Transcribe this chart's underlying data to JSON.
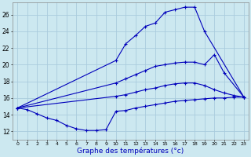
{
  "xlabel": "Graphe des températures (°c)",
  "x_ticks": [
    0,
    1,
    2,
    3,
    4,
    5,
    6,
    7,
    8,
    9,
    10,
    11,
    12,
    13,
    14,
    15,
    16,
    17,
    18,
    19,
    20,
    21,
    22,
    23
  ],
  "y_ticks": [
    12,
    14,
    16,
    18,
    20,
    22,
    24,
    26
  ],
  "xlim": [
    -0.5,
    23.5
  ],
  "ylim": [
    11.0,
    27.5
  ],
  "background_color": "#cce8f0",
  "grid_color": "#aaccdd",
  "line_color": "#0000bb",
  "series": [
    {
      "x": [
        0,
        1,
        2,
        3,
        4,
        5,
        6,
        7,
        8,
        9,
        10,
        11,
        12,
        13,
        14,
        15,
        16,
        17,
        18,
        19,
        20,
        21,
        22,
        23
      ],
      "y": [
        14.8,
        14.6,
        14.1,
        13.6,
        13.3,
        12.7,
        12.3,
        12.1,
        12.1,
        12.2,
        14.4,
        14.5,
        14.8,
        15.0,
        15.2,
        15.4,
        15.6,
        15.7,
        15.8,
        15.9,
        16.0,
        16.0,
        16.1,
        16.1
      ]
    },
    {
      "x": [
        0,
        10,
        11,
        12,
        13,
        14,
        15,
        16,
        17,
        18,
        19,
        23
      ],
      "y": [
        14.8,
        20.5,
        22.5,
        23.5,
        24.6,
        25.0,
        26.3,
        26.6,
        26.9,
        26.9,
        24.0,
        16.1
      ]
    },
    {
      "x": [
        0,
        10,
        11,
        12,
        13,
        14,
        15,
        16,
        17,
        18,
        19,
        20,
        21,
        23
      ],
      "y": [
        14.8,
        17.8,
        18.3,
        18.8,
        19.3,
        19.8,
        20.0,
        20.2,
        20.3,
        20.3,
        20.0,
        21.2,
        19.0,
        16.1
      ]
    },
    {
      "x": [
        0,
        10,
        11,
        12,
        13,
        14,
        15,
        16,
        17,
        18,
        19,
        20,
        21,
        22,
        23
      ],
      "y": [
        14.8,
        16.2,
        16.4,
        16.7,
        17.0,
        17.2,
        17.5,
        17.7,
        17.8,
        17.8,
        17.5,
        17.0,
        16.6,
        16.3,
        16.1
      ]
    }
  ]
}
